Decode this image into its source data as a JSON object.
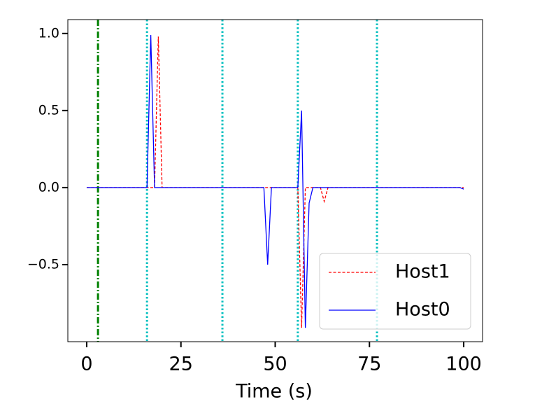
{
  "chart_data": {
    "type": "line",
    "x_label": "Time (s)",
    "xlim": [
      -5,
      105
    ],
    "ylim": [
      -1.0,
      1.09
    ],
    "xticks": [
      0,
      25,
      50,
      75,
      100
    ],
    "yticks": [
      {
        "value": 1.0,
        "label": "1.0"
      },
      0.5,
      {
        "value": 0.0,
        "label": "0.0"
      },
      {
        "value": -0.5,
        "label": "−0.5"
      }
    ],
    "legend": "lower right",
    "vlines": [
      {
        "x": 3,
        "color": "#008000",
        "dash": "dashdot"
      },
      {
        "x": 16,
        "color": "#00bfbf",
        "dash": "dotted"
      },
      {
        "x": 36,
        "color": "#00bfbf",
        "dash": "dotted"
      },
      {
        "x": 56,
        "color": "#00bfbf",
        "dash": "dotted"
      },
      {
        "x": 77,
        "color": "#00bfbf",
        "dash": "dotted"
      }
    ],
    "series": [
      {
        "name": "Host1",
        "color": "#ff0000",
        "dash": "dashed",
        "x": [
          0,
          18,
          19,
          20,
          56,
          57,
          58,
          62,
          63,
          64,
          100
        ],
        "values": [
          0,
          0,
          0.98,
          0,
          0,
          -0.91,
          0,
          0,
          -0.09,
          0,
          0
        ]
      },
      {
        "name": "Host0",
        "color": "#0000ff",
        "dash": "solid",
        "x": [
          0,
          16,
          17,
          18,
          47,
          48,
          49,
          56,
          57,
          58,
          59,
          60,
          99,
          100
        ],
        "values": [
          0,
          0,
          0.99,
          0,
          0,
          -0.5,
          0,
          0,
          0.5,
          -0.91,
          -0.1,
          0,
          0,
          -0.01
        ]
      }
    ]
  }
}
